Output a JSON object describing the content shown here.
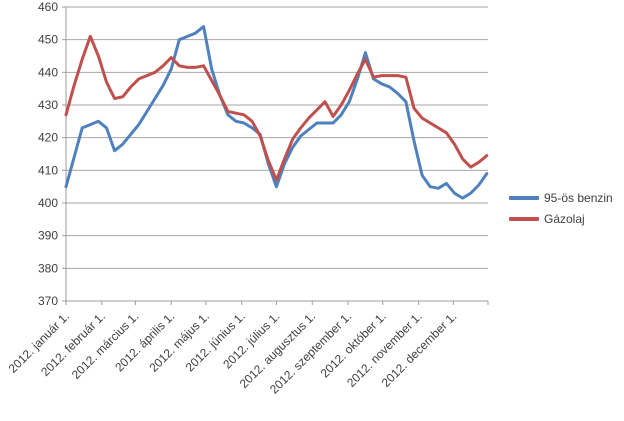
{
  "chart_data": {
    "type": "line",
    "title": "",
    "xlabel": "",
    "ylabel": "",
    "grid": true,
    "legend_position": "right",
    "x_axis": {
      "total_days": 365,
      "month_tick_days": [
        0,
        31,
        60,
        91,
        121,
        152,
        182,
        213,
        244,
        274,
        305,
        335,
        365
      ],
      "month_labels": [
        "2012. január 1.",
        "2012. február 1.",
        "2012. március 1.",
        "2012. április 1.",
        "2012. május 1.",
        "2012. június 1.",
        "2012. július 1.",
        "2012. augusztus 1.",
        "2012. szeptember 1.",
        "2012. október 1.",
        "2012. november 1.",
        "2012. december 1."
      ]
    },
    "y_axis": {
      "min": 370,
      "max": 460,
      "step": 10,
      "tick_labels": [
        370,
        380,
        390,
        400,
        410,
        420,
        430,
        440,
        450,
        460
      ]
    },
    "x_interval_days": 7,
    "series": [
      {
        "name": "95-ös benzin",
        "color": "#4F81BD",
        "values": [
          405,
          414,
          423,
          424,
          425,
          423,
          416,
          418,
          421,
          424,
          428,
          432,
          436,
          441,
          450,
          451,
          452,
          454,
          441,
          433,
          427,
          425,
          424.5,
          423,
          421,
          412,
          405,
          412,
          417,
          420.5,
          422.5,
          424.5,
          424.5,
          424.5,
          427,
          431,
          438,
          446,
          438,
          436.5,
          435.5,
          433.5,
          431,
          419,
          408.5,
          405,
          404.5,
          406,
          403,
          401.5,
          403,
          405.5,
          409
        ]
      },
      {
        "name": "Gázolaj",
        "color": "#C0504D",
        "values": [
          427,
          436,
          444,
          451,
          445,
          437,
          432,
          432.5,
          435.5,
          438,
          439,
          440,
          442,
          444.5,
          442,
          441.5,
          441.5,
          442,
          437.5,
          433,
          428,
          427.5,
          427,
          425,
          420.5,
          413,
          407,
          413.5,
          419.5,
          423,
          426,
          428.5,
          431,
          426.5,
          430,
          434.5,
          439.5,
          444,
          438.5,
          439,
          439,
          439,
          438.5,
          429,
          426,
          424.5,
          423,
          421.5,
          418,
          413.5,
          411,
          412.5,
          414.5
        ]
      }
    ]
  },
  "colors": {
    "benzin_line": "#4F81BD",
    "gazolaj_line": "#C0504D",
    "gridline": "#A6A6A6",
    "axis": "#9C9C9C",
    "label_text": "#404040",
    "background": "#FFFFFF"
  }
}
